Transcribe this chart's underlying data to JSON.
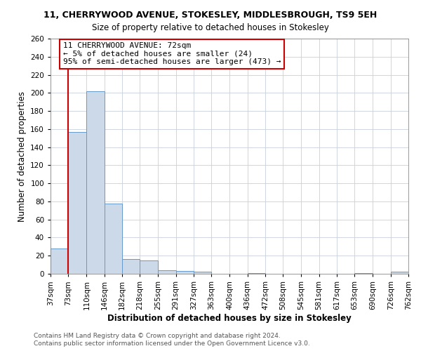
{
  "title": "11, CHERRYWOOD AVENUE, STOKESLEY, MIDDLESBROUGH, TS9 5EH",
  "subtitle": "Size of property relative to detached houses in Stokesley",
  "xlabel": "Distribution of detached houses by size in Stokesley",
  "ylabel": "Number of detached properties",
  "bar_edges": [
    37,
    73,
    110,
    146,
    182,
    218,
    255,
    291,
    327,
    363,
    400,
    436,
    472,
    508,
    545,
    581,
    617,
    653,
    690,
    726,
    762
  ],
  "bar_heights": [
    28,
    157,
    202,
    78,
    16,
    15,
    4,
    3,
    2,
    0,
    0,
    1,
    0,
    0,
    0,
    0,
    0,
    1,
    0,
    2,
    0
  ],
  "bar_color": "#ccd9e8",
  "bar_edge_color": "#6699cc",
  "property_line_x": 73,
  "property_line_color": "#cc0000",
  "ylim": [
    0,
    260
  ],
  "yticks": [
    0,
    20,
    40,
    60,
    80,
    100,
    120,
    140,
    160,
    180,
    200,
    220,
    240,
    260
  ],
  "annotation_line1": "11 CHERRYWOOD AVENUE: 72sqm",
  "annotation_line2": "← 5% of detached houses are smaller (24)",
  "annotation_line3": "95% of semi-detached houses are larger (473) →",
  "annotation_box_facecolor": "white",
  "annotation_box_edgecolor": "#cc0000",
  "footer_line1": "Contains HM Land Registry data © Crown copyright and database right 2024.",
  "footer_line2": "Contains public sector information licensed under the Open Government Licence v3.0.",
  "bg_color": "white",
  "grid_color": "#c8d0dc",
  "title_fontsize": 9,
  "subtitle_fontsize": 8.5,
  "label_fontsize": 8.5,
  "tick_fontsize": 7.5,
  "annot_fontsize": 8,
  "footer_fontsize": 6.5
}
